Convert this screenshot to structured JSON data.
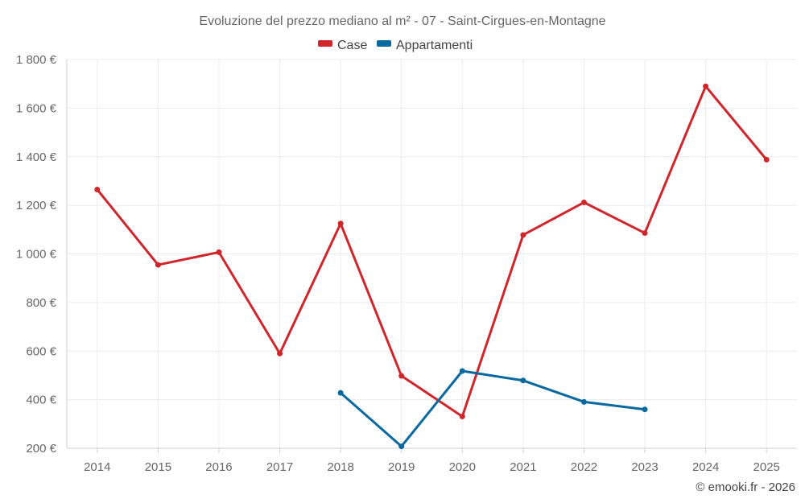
{
  "chart_data": {
    "type": "line",
    "title": "Evoluzione del prezzo mediano al m² - 07 - Saint-Cirgues-en-Montagne",
    "categories": [
      "2014",
      "2015",
      "2016",
      "2017",
      "2018",
      "2019",
      "2020",
      "2021",
      "2022",
      "2023",
      "2024",
      "2025"
    ],
    "series": [
      {
        "name": "Case",
        "color": "#d0262b",
        "values": [
          1265,
          955,
          1007,
          590,
          1125,
          498,
          331,
          1078,
          1212,
          1086,
          1690,
          1388
        ]
      },
      {
        "name": "Appartamenti",
        "color": "#0868a0",
        "values": [
          null,
          null,
          null,
          null,
          428,
          208,
          518,
          479,
          391,
          360,
          null,
          null
        ]
      }
    ],
    "ylim": [
      200,
      1800
    ],
    "yticks": [
      200,
      400,
      600,
      800,
      1000,
      1200,
      1400,
      1600,
      1800
    ],
    "ytick_labels": [
      "200 €",
      "400 €",
      "600 €",
      "800 €",
      "1 000 €",
      "1 200 €",
      "1 400 €",
      "1 600 €",
      "1 800 €"
    ],
    "grid": true,
    "legend": "top-center",
    "credit": "© emooki.fr - 2026"
  }
}
